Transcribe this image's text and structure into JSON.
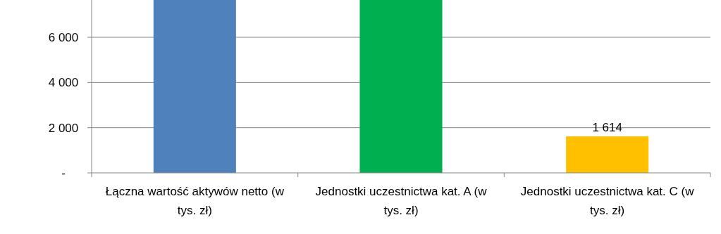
{
  "chart_data": {
    "type": "bar",
    "categories": [
      "Łączna wartość aktywów netto (w tys. zł)",
      "Jednostki uczestnictwa kat. A (w tys. zł)",
      "Jednostki uczestnictwa kat. C (w tys. zł)"
    ],
    "values": [
      7650,
      7650,
      1614
    ],
    "colors": [
      "#4f81bd",
      "#00b050",
      "#ffc000"
    ],
    "value_labels": [
      null,
      null,
      "1 614"
    ],
    "ylim": [
      0,
      7650
    ],
    "yticks": [
      {
        "value": 0,
        "label": "-"
      },
      {
        "value": 2000,
        "label": "2 000"
      },
      {
        "value": 4000,
        "label": "4 000"
      },
      {
        "value": 6000,
        "label": "6 000"
      }
    ],
    "grid": "y"
  }
}
